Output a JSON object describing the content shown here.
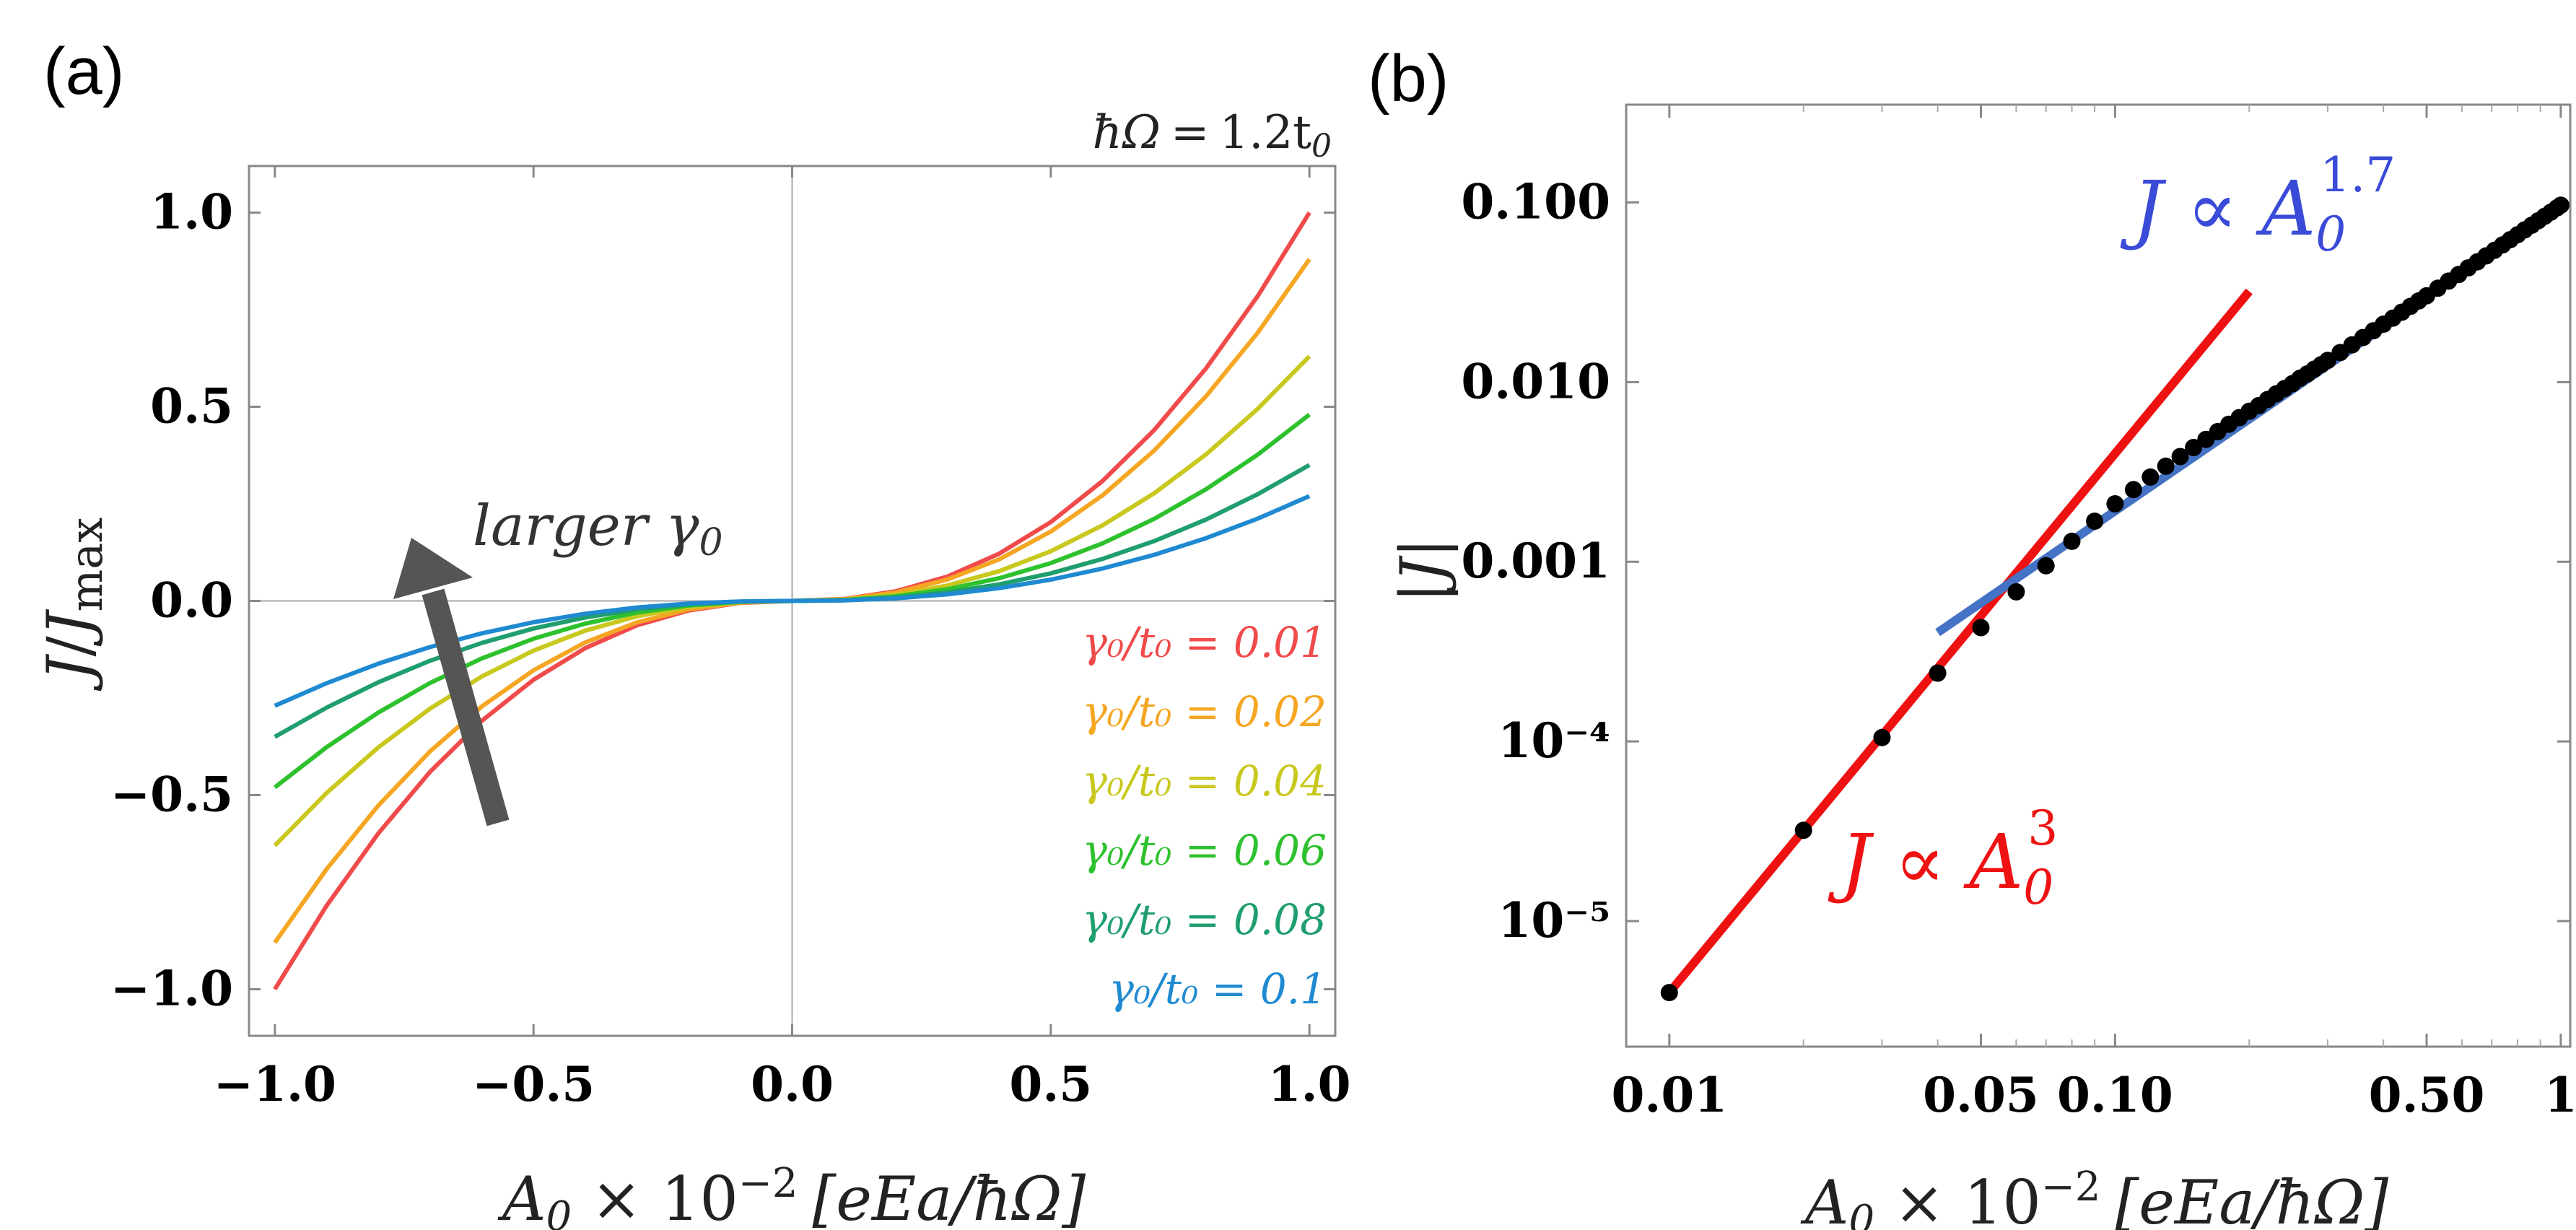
{
  "chart_data": [
    {
      "panel": "(a)",
      "type": "line",
      "title": "ħΩ = 1.2t₀",
      "xlabel": "A₀ × 10⁻² [eEa/ħΩ]",
      "ylabel": "J/J_max",
      "xlim": [
        -1.05,
        1.05
      ],
      "ylim": [
        -1.12,
        1.12
      ],
      "xticks": [
        "−1.0",
        "−0.5",
        "0.0",
        "0.5",
        "1.0"
      ],
      "yticks": [
        "−1.0",
        "−0.5",
        "0.0",
        "0.5",
        "1.0"
      ],
      "annotation": "larger γ₀",
      "series": [
        {
          "name": "γ₀/t₀ = 0.01",
          "color": "#f04a4a",
          "amplitude": 1.0,
          "exponent": 2.3
        },
        {
          "name": "γ₀/t₀ = 0.02",
          "color": "#f5a623",
          "amplitude": 0.88,
          "exponent": 2.3
        },
        {
          "name": "γ₀/t₀ = 0.04",
          "color": "#c8c81e",
          "amplitude": 0.63,
          "exponent": 2.3
        },
        {
          "name": "γ₀/t₀ = 0.06",
          "color": "#2ec12e",
          "amplitude": 0.48,
          "exponent": 2.3
        },
        {
          "name": "γ₀/t₀ = 0.08",
          "color": "#1f9e6e",
          "amplitude": 0.35,
          "exponent": 2.3
        },
        {
          "name": "γ₀/t₀ = 0.1",
          "color": "#1f8ad1",
          "amplitude": 0.27,
          "exponent": 2.3
        }
      ]
    },
    {
      "panel": "(b)",
      "type": "scatter",
      "scale": "log-log",
      "xlabel": "A₀ × 10⁻² [eEa/ħΩ]",
      "ylabel": "|J|",
      "xlim": [
        0.008,
        1.05
      ],
      "ylim": [
        2e-06,
        0.35
      ],
      "xticks": [
        "0.01",
        "0.05",
        "0.10",
        "0.50",
        "1"
      ],
      "yticks": [
        "10⁻⁵",
        "10⁻⁴",
        "0.001",
        "0.010",
        "0.100"
      ],
      "data_points": {
        "color": "#000000",
        "x": [
          0.01,
          0.02,
          0.03,
          0.04,
          0.05,
          0.06,
          0.07,
          0.08,
          0.09,
          0.1,
          0.11,
          0.12,
          0.13,
          0.14,
          0.15,
          0.16,
          0.17,
          0.18,
          0.19,
          0.2,
          0.21,
          0.22,
          0.23,
          0.24,
          0.25,
          0.26,
          0.27,
          0.28,
          0.29,
          0.3,
          0.32,
          0.34,
          0.36,
          0.38,
          0.4,
          0.42,
          0.44,
          0.46,
          0.48,
          0.5,
          0.53,
          0.56,
          0.59,
          0.62,
          0.65,
          0.68,
          0.71,
          0.74,
          0.77,
          0.8,
          0.83,
          0.86,
          0.89,
          0.92,
          0.95,
          0.98,
          1.0
        ],
        "y": [
          4e-06,
          3.2e-05,
          0.000105,
          0.00024,
          0.00043,
          0.00068,
          0.00095,
          0.0013,
          0.00168,
          0.0021,
          0.00252,
          0.00296,
          0.0034,
          0.00385,
          0.00432,
          0.0048,
          0.0053,
          0.00582,
          0.00634,
          0.00688,
          0.0074,
          0.008,
          0.0086,
          0.0092,
          0.0098,
          0.0105,
          0.0111,
          0.0118,
          0.0125,
          0.0132,
          0.0146,
          0.0161,
          0.0177,
          0.0193,
          0.021,
          0.0227,
          0.0245,
          0.0264,
          0.0283,
          0.0302,
          0.0333,
          0.0365,
          0.0397,
          0.0432,
          0.0467,
          0.0504,
          0.0541,
          0.058,
          0.062,
          0.0661,
          0.0703,
          0.0746,
          0.0791,
          0.0837,
          0.0883,
          0.0931,
          0.0965
        ]
      },
      "fits": [
        {
          "label": "J ∝ A₀³",
          "exponent": 3,
          "color": "#ee1111",
          "x_range": [
            0.01,
            0.2
          ],
          "prefactor": 4.0,
          "label_position": "lower-middle"
        },
        {
          "label": "J ∝ A₀^1.7",
          "exponent": 1.7,
          "color": "#4472c4",
          "x_range": [
            0.04,
            1.0
          ],
          "prefactor": 0.096,
          "label_position": "top-right"
        }
      ]
    }
  ],
  "panel_labels": [
    "(a)",
    "(b)"
  ],
  "title_a": {
    "lhs": "ħΩ",
    "eq": "=",
    "rhs": "1.2t",
    "sub": "0"
  },
  "ylabel_a": {
    "j": "J",
    "sep": "/",
    "j2": "J",
    "sub": "max"
  },
  "xlabel": {
    "a": "A",
    "sub": "0",
    "times": " × 10",
    "exp": "−2",
    "bracket": "[eEa/ħΩ]"
  },
  "ylabel_b": "|J|",
  "arrow_label": {
    "text": "larger γ",
    "sub": "0"
  },
  "fit_label_a": {
    "text": "J ∝ A",
    "sub": "0",
    "sup": "3"
  },
  "fit_label_b": {
    "text": "J ∝ A",
    "sub": "0",
    "sup": "1.7"
  }
}
